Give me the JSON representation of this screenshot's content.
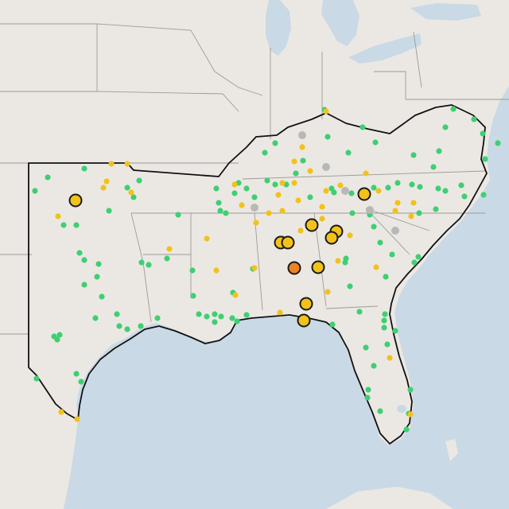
{
  "map": {
    "colors": {
      "water": "#c9d9e5",
      "land": "#ebe8e4",
      "state_lines": "#9e9a95",
      "outline": "#111111"
    },
    "categories": [
      {
        "key": "green",
        "color": "#3fcf72"
      },
      {
        "key": "yellow",
        "color": "#f2c21b"
      },
      {
        "key": "orange",
        "color": "#ee8322"
      },
      {
        "key": "gray",
        "color": "#b8b8b8"
      }
    ]
  }
}
